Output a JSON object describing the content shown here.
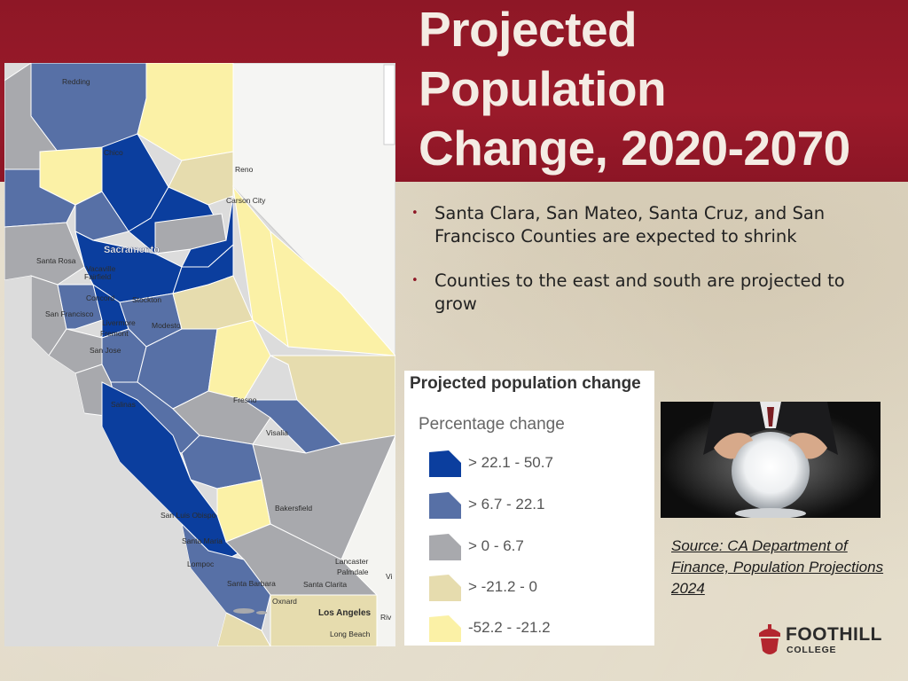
{
  "slide": {
    "title_lines": [
      "Projected",
      "Population",
      "Change, 2020-2070"
    ],
    "bullets": [
      "Santa Clara, San Mateo, Santa Cruz, and San Francisco Counties are expected to shrink",
      "Counties to the east and south are projected to grow"
    ],
    "source": "Source: CA Department of Finance, Population Projections 2024",
    "photo_icon": "crystal-ball-photo",
    "colors": {
      "banner": "#8e1726",
      "title_text": "#f4ece4"
    }
  },
  "map": {
    "cities": {
      "redding": "Redding",
      "chico": "Chico",
      "reno": "Reno",
      "carson_city": "Carson City",
      "sacramento": "Sacramento",
      "santa_rosa": "Santa Rosa",
      "vacaville": "Vacaville",
      "fairfield": "Fairfield",
      "concord": "Concord",
      "stockton": "Stockton",
      "san_francisco": "San Francisco",
      "livermore": "Livermore",
      "fremont": "Fremont",
      "modesto": "Modesto",
      "san_jose": "San Jose",
      "salinas": "Salinas",
      "fresno": "Fresno",
      "visalia": "Visalia",
      "bakersfield": "Bakersfield",
      "san_luis_obispo": "San Luis Obispo",
      "santa_maria": "Santa Maria",
      "lompoc": "Lompoc",
      "santa_barbara": "Santa Barbara",
      "santa_clarita": "Santa Clarita",
      "lancaster": "Lancaster",
      "palmdale": "Palmdale",
      "oxnard": "Oxnard",
      "los_angeles": "Los Angeles",
      "long_beach": "Long Beach",
      "vi": "Vi",
      "riv": "Riv"
    }
  },
  "legend": {
    "title": "Projected population change",
    "subtitle": "Percentage change",
    "items": [
      {
        "label": "> 22.1 - 50.7",
        "color": "#0b3e9e"
      },
      {
        "label": "> 6.7 - 22.1",
        "color": "#5770a6"
      },
      {
        "label": "> 0 - 6.7",
        "color": "#a8a9ad"
      },
      {
        "label": "> -21.2 - 0",
        "color": "#e6dcae"
      },
      {
        "label": "-52.2 - -21.2",
        "color": "#fbf1a6"
      }
    ]
  },
  "logo": {
    "name": "FOOTHILL",
    "sub": "COLLEGE",
    "color": "#b3262f"
  }
}
